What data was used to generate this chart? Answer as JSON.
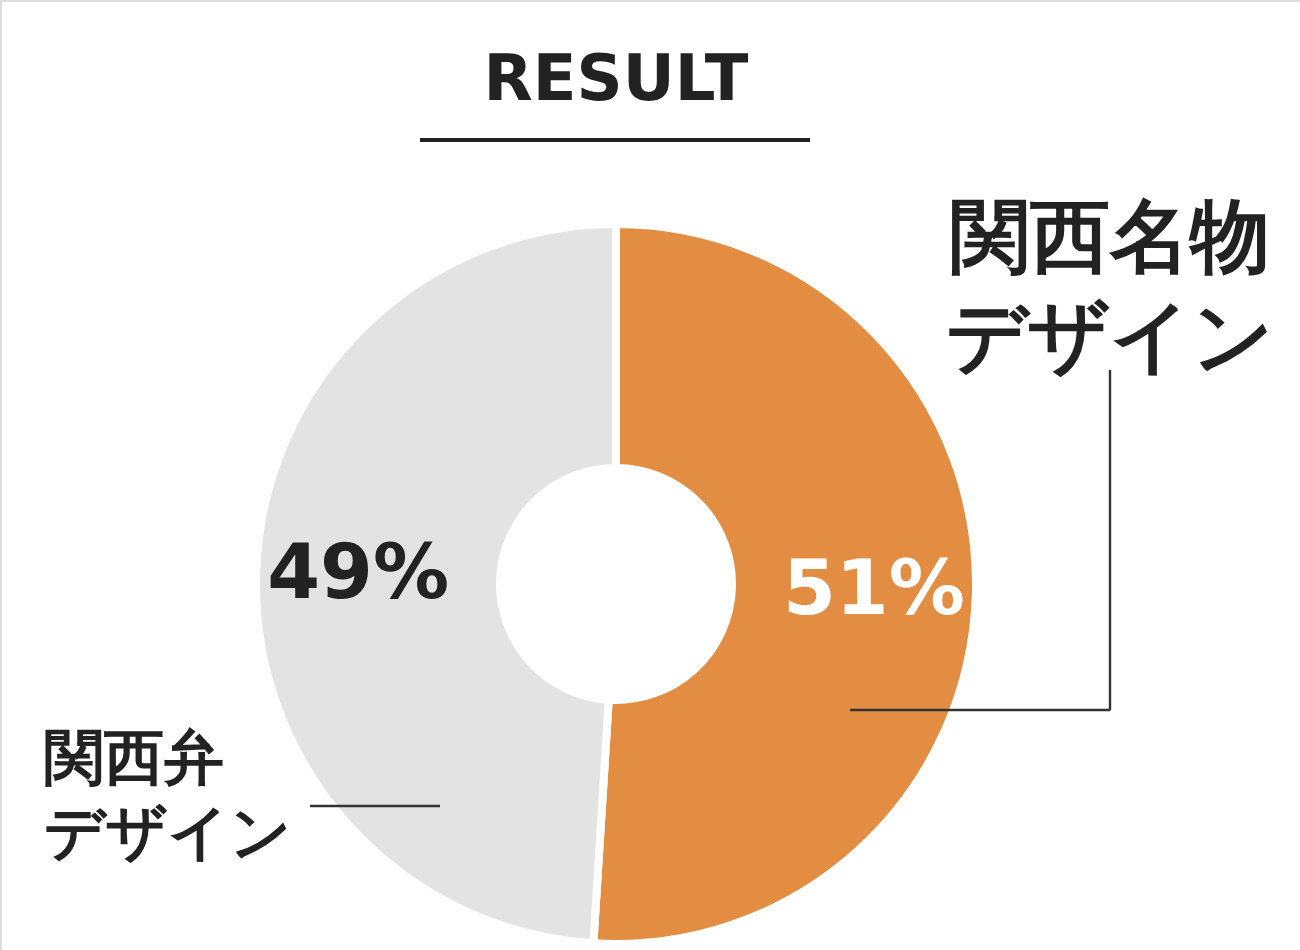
{
  "chart_data": {
    "type": "donut",
    "title": "RESULT",
    "categories": [
      "関西名物デザイン",
      "関西弁デザイン"
    ],
    "values": [
      51,
      49
    ],
    "colors": [
      "#e38d42",
      "#e3e3e3"
    ],
    "value_labels": [
      "51%",
      "49%"
    ]
  }
}
